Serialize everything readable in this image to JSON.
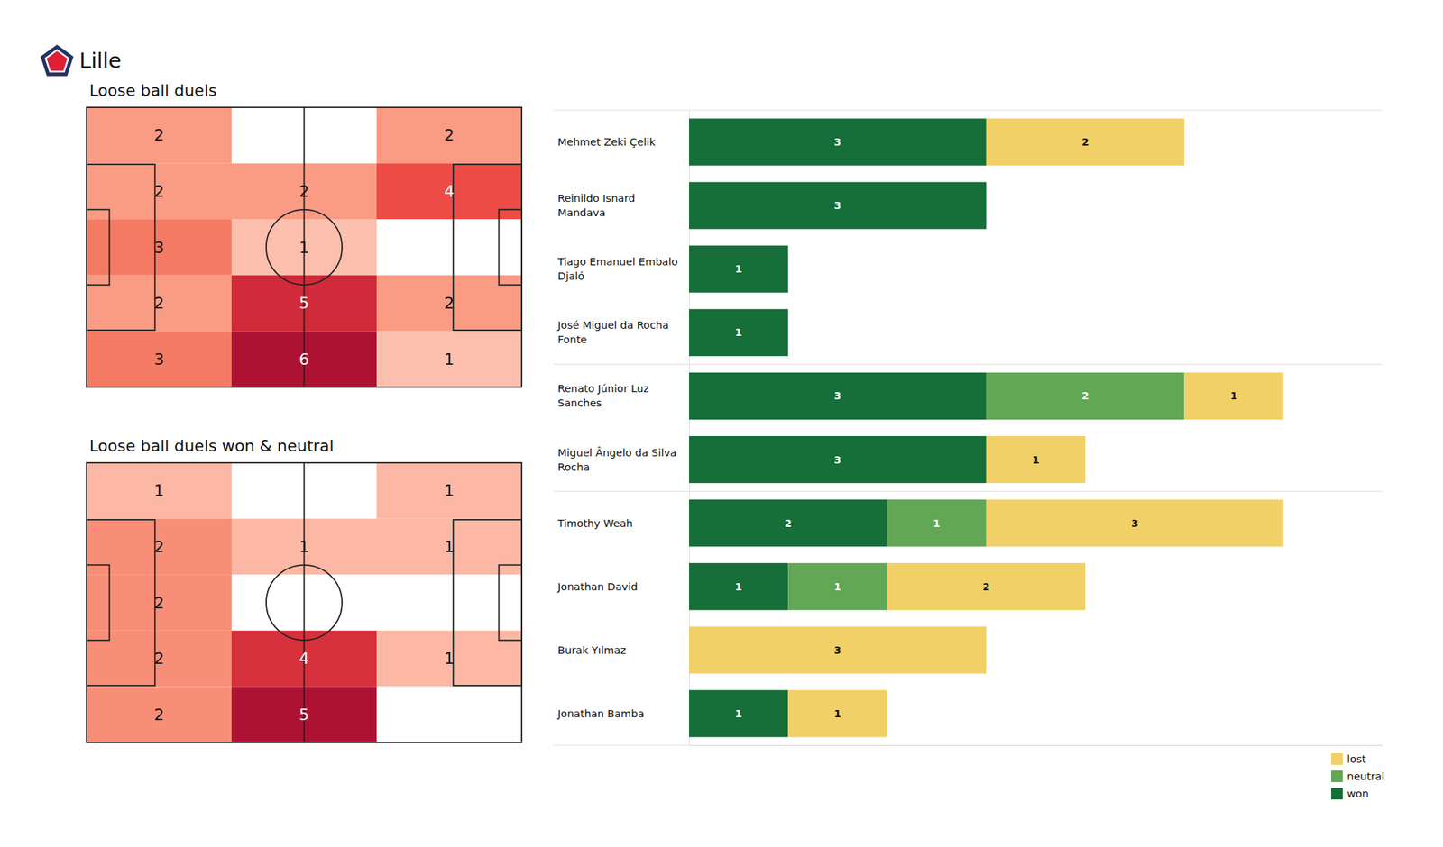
{
  "header": {
    "title": "Lille"
  },
  "chart_data": [
    {
      "type": "heatmap",
      "title": "Loose ball duels",
      "cells": [
        [
          2,
          null,
          2
        ],
        [
          2,
          2,
          4
        ],
        [
          3,
          1,
          null
        ],
        [
          2,
          5,
          2
        ],
        [
          3,
          6,
          1
        ]
      ]
    },
    {
      "type": "heatmap",
      "title": "Loose ball duels won & neutral",
      "cells": [
        [
          1,
          null,
          1
        ],
        [
          2,
          1,
          1
        ],
        [
          2,
          null,
          null
        ],
        [
          2,
          4,
          1
        ],
        [
          2,
          5,
          null
        ]
      ]
    },
    {
      "type": "bar",
      "orientation": "horizontal",
      "stacked": true,
      "data_labels": true,
      "tick_labels": false,
      "legend": "lower right",
      "xlim": [
        0,
        7
      ],
      "categories": [
        "Mehmet Zeki Çelik",
        "Reinildo Isnard\nMandava",
        "Tiago Emanuel Embalo\nDjaló",
        "José Miguel da Rocha\nFonte",
        "Renato Júnior Luz\nSanches",
        "Miguel Ângelo da Silva\nRocha",
        "Timothy Weah",
        "Jonathan David",
        "Burak Yılmaz",
        "Jonathan Bamba"
      ],
      "series": [
        {
          "name": "won",
          "color": "#166e39",
          "values": [
            3,
            3,
            1,
            1,
            3,
            3,
            2,
            1,
            0,
            1
          ]
        },
        {
          "name": "neutral",
          "color": "#62a756",
          "values": [
            0,
            0,
            0,
            0,
            2,
            0,
            1,
            1,
            0,
            0
          ]
        },
        {
          "name": "lost",
          "color": "#f1d068",
          "values": [
            2,
            0,
            0,
            0,
            1,
            1,
            3,
            2,
            3,
            1
          ]
        }
      ]
    }
  ]
}
